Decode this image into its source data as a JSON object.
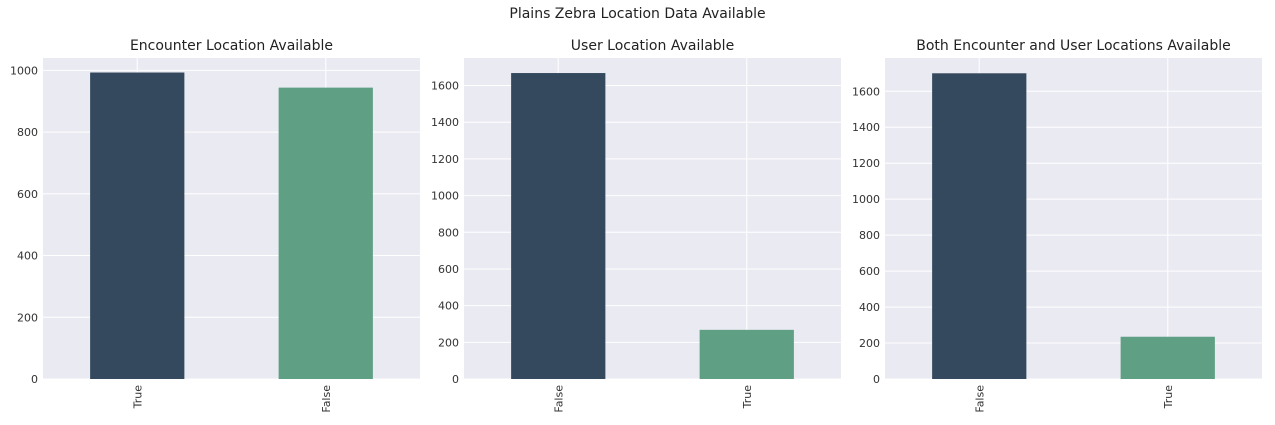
{
  "figure": {
    "suptitle": "Plains Zebra Location Data Available"
  },
  "colors": {
    "background": "#eaeaf2",
    "grid": "#ffffff",
    "primary_bar": "#34495e",
    "secondary_bar": "#5fa084"
  },
  "chart_data": [
    {
      "type": "bar",
      "title": "Encounter Location Available",
      "categories": [
        "True",
        "False"
      ],
      "values": [
        993,
        944
      ],
      "ylim": [
        0,
        1040
      ],
      "yticks": [
        0,
        200,
        400,
        600,
        800,
        1000
      ],
      "grid": true
    },
    {
      "type": "bar",
      "title": "User Location Available",
      "categories": [
        "False",
        "True"
      ],
      "values": [
        1668,
        268
      ],
      "ylim": [
        0,
        1750
      ],
      "yticks": [
        0,
        200,
        400,
        600,
        800,
        1000,
        1200,
        1400,
        1600
      ],
      "grid": true
    },
    {
      "type": "bar",
      "title": "Both Encounter and User Locations Available",
      "categories": [
        "False",
        "True"
      ],
      "values": [
        1700,
        235
      ],
      "ylim": [
        0,
        1785
      ],
      "yticks": [
        0,
        200,
        400,
        600,
        800,
        1000,
        1200,
        1400,
        1600
      ],
      "grid": true
    }
  ]
}
